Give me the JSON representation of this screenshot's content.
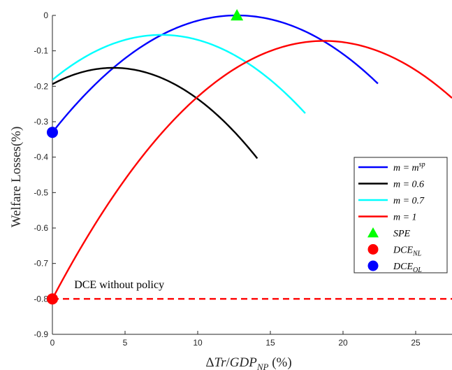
{
  "chart_data": {
    "type": "line",
    "xlabel": "ΔTr/GDP_NP (%)",
    "ylabel": "Welfare Losses(%)",
    "xlim": [
      0,
      27.5
    ],
    "ylim": [
      -0.9,
      0
    ],
    "xticks": [
      0,
      5,
      10,
      15,
      20,
      25
    ],
    "xtick_labels": [
      "0",
      "5",
      "10",
      "15",
      "20",
      "25"
    ],
    "yticks": [
      0,
      -0.1,
      -0.2,
      -0.3,
      -0.4,
      -0.5,
      -0.6,
      -0.7,
      -0.8,
      -0.9
    ],
    "ytick_labels": [
      "0",
      "-0.1",
      "-0.2",
      "-0.3",
      "-0.4",
      "-0.5",
      "-0.6",
      "-0.7",
      "-0.8",
      "-0.9"
    ],
    "grid": false,
    "legend_position": "right",
    "series": [
      {
        "name": "m = m^sp",
        "color": "#0000ff",
        "kind": "parabola",
        "x_range": [
          0,
          22.4
        ],
        "vertex_x": 12.7,
        "vertex_y": 0.0,
        "y_at_zero": -0.33
      },
      {
        "name": "m = 0.6",
        "color": "#000000",
        "kind": "parabola",
        "x_range": [
          0,
          14.1
        ],
        "vertex_x": 4.2,
        "vertex_y": -0.148,
        "y_at_zero": -0.194
      },
      {
        "name": "m = 0.7",
        "color": "#00ffff",
        "kind": "parabola",
        "x_range": [
          0,
          17.4
        ],
        "vertex_x": 7.5,
        "vertex_y": -0.055,
        "y_at_zero": -0.182
      },
      {
        "name": "m = 1",
        "color": "#ff0000",
        "kind": "parabola",
        "x_range": [
          0,
          27.5
        ],
        "vertex_x": 18.7,
        "vertex_y": -0.072,
        "y_at_zero": -0.8
      }
    ],
    "reference_line": {
      "y": -0.8,
      "color": "#ff0000",
      "style": "dashed"
    },
    "markers": [
      {
        "name": "SPE",
        "shape": "triangle",
        "color": "#00ff00",
        "x": 12.7,
        "y": 0.0
      },
      {
        "name": "DCE_NL",
        "shape": "circle",
        "color": "#ff0000",
        "x": 0,
        "y": -0.8
      },
      {
        "name": "DCE_OL",
        "shape": "circle",
        "color": "#0000ff",
        "x": 0,
        "y": -0.33
      }
    ],
    "annotations": [
      {
        "text": "DCE without policy",
        "x": 1.5,
        "y": -0.76
      }
    ]
  }
}
